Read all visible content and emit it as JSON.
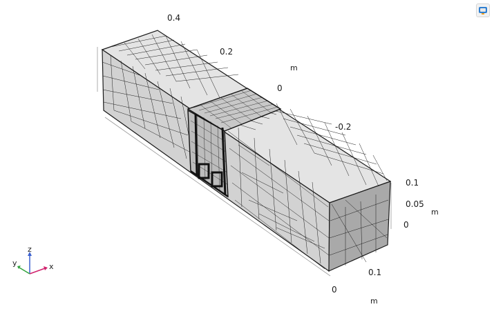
{
  "axes": {
    "y_ticks": [
      "0.4",
      "0.2",
      "0",
      "-0.2"
    ],
    "y_unit": "m",
    "z_ticks": [
      "0.1",
      "0.05",
      "0"
    ],
    "z_unit": "m",
    "x_ticks": [
      "0",
      "0.1"
    ],
    "x_unit": "m"
  },
  "triad": {
    "x": "x",
    "y": "y",
    "z": "z"
  },
  "colors": {
    "mesh_face_light": "#e4e4e4",
    "mesh_face_mid": "#d2d2d2",
    "mesh_face_dark": "#a9a9a9",
    "mesh_edge": "#1a1a1a",
    "axis_x": "#d0216c",
    "axis_y": "#2fa33a",
    "axis_z": "#3a5fcf"
  },
  "icons": {
    "logo": "comsol-logo-icon"
  }
}
